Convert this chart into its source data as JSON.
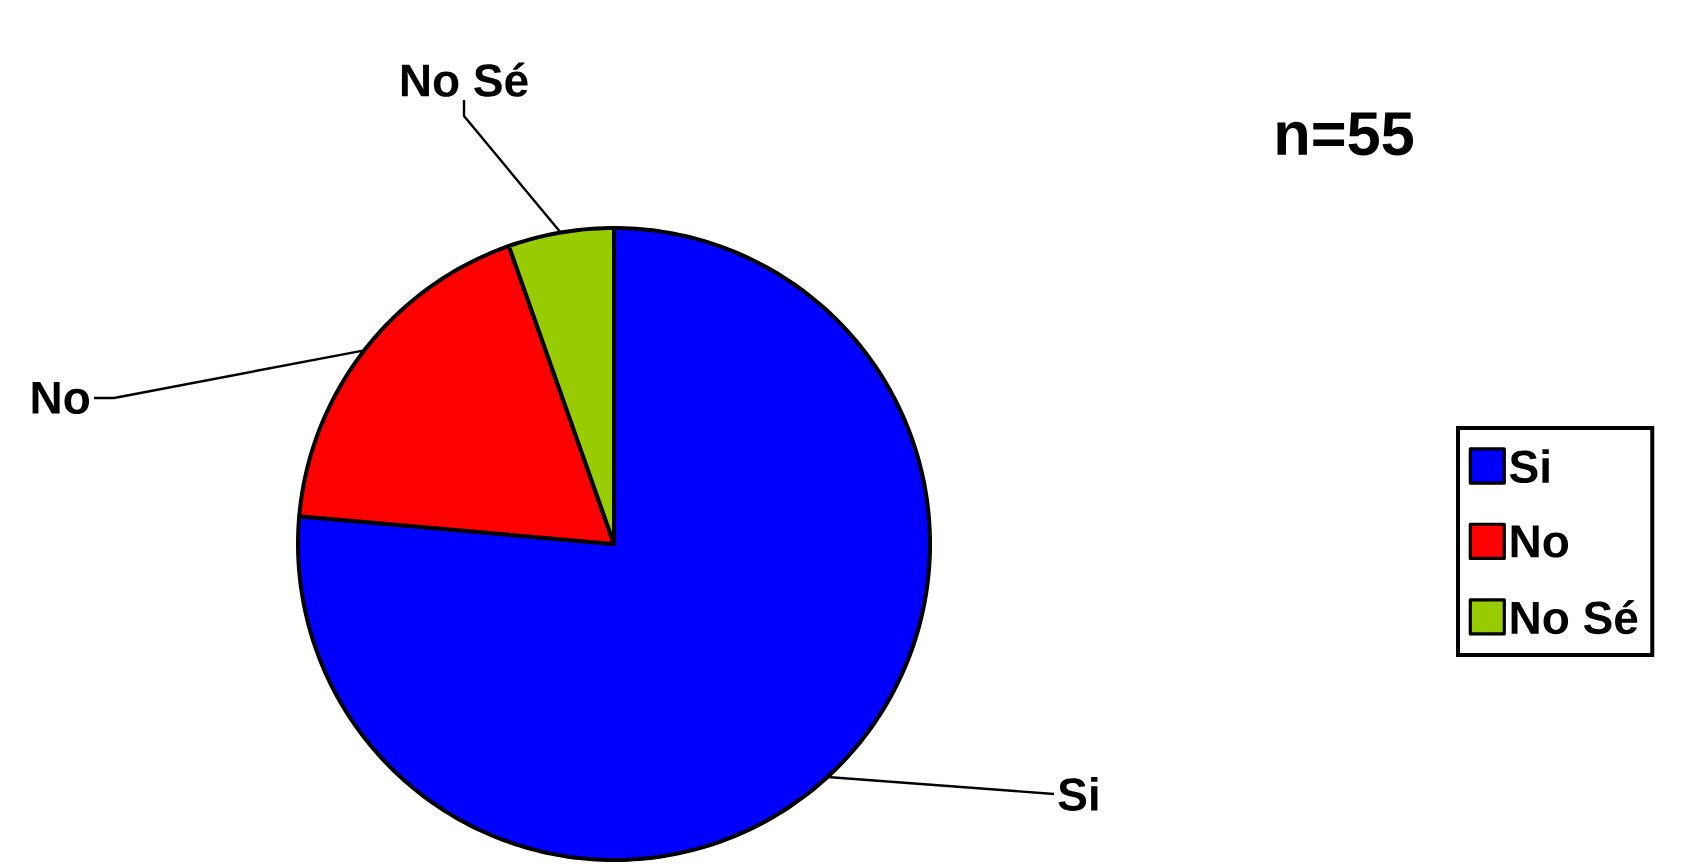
{
  "chart_data": {
    "type": "pie",
    "categories": [
      "Si",
      "No",
      "No Sé"
    ],
    "values": [
      76.4,
      18.2,
      5.4
    ],
    "colors": [
      "#0000ff",
      "#ff0000",
      "#99cc00"
    ],
    "legend": "right",
    "annotations": [
      "n=55"
    ]
  }
}
